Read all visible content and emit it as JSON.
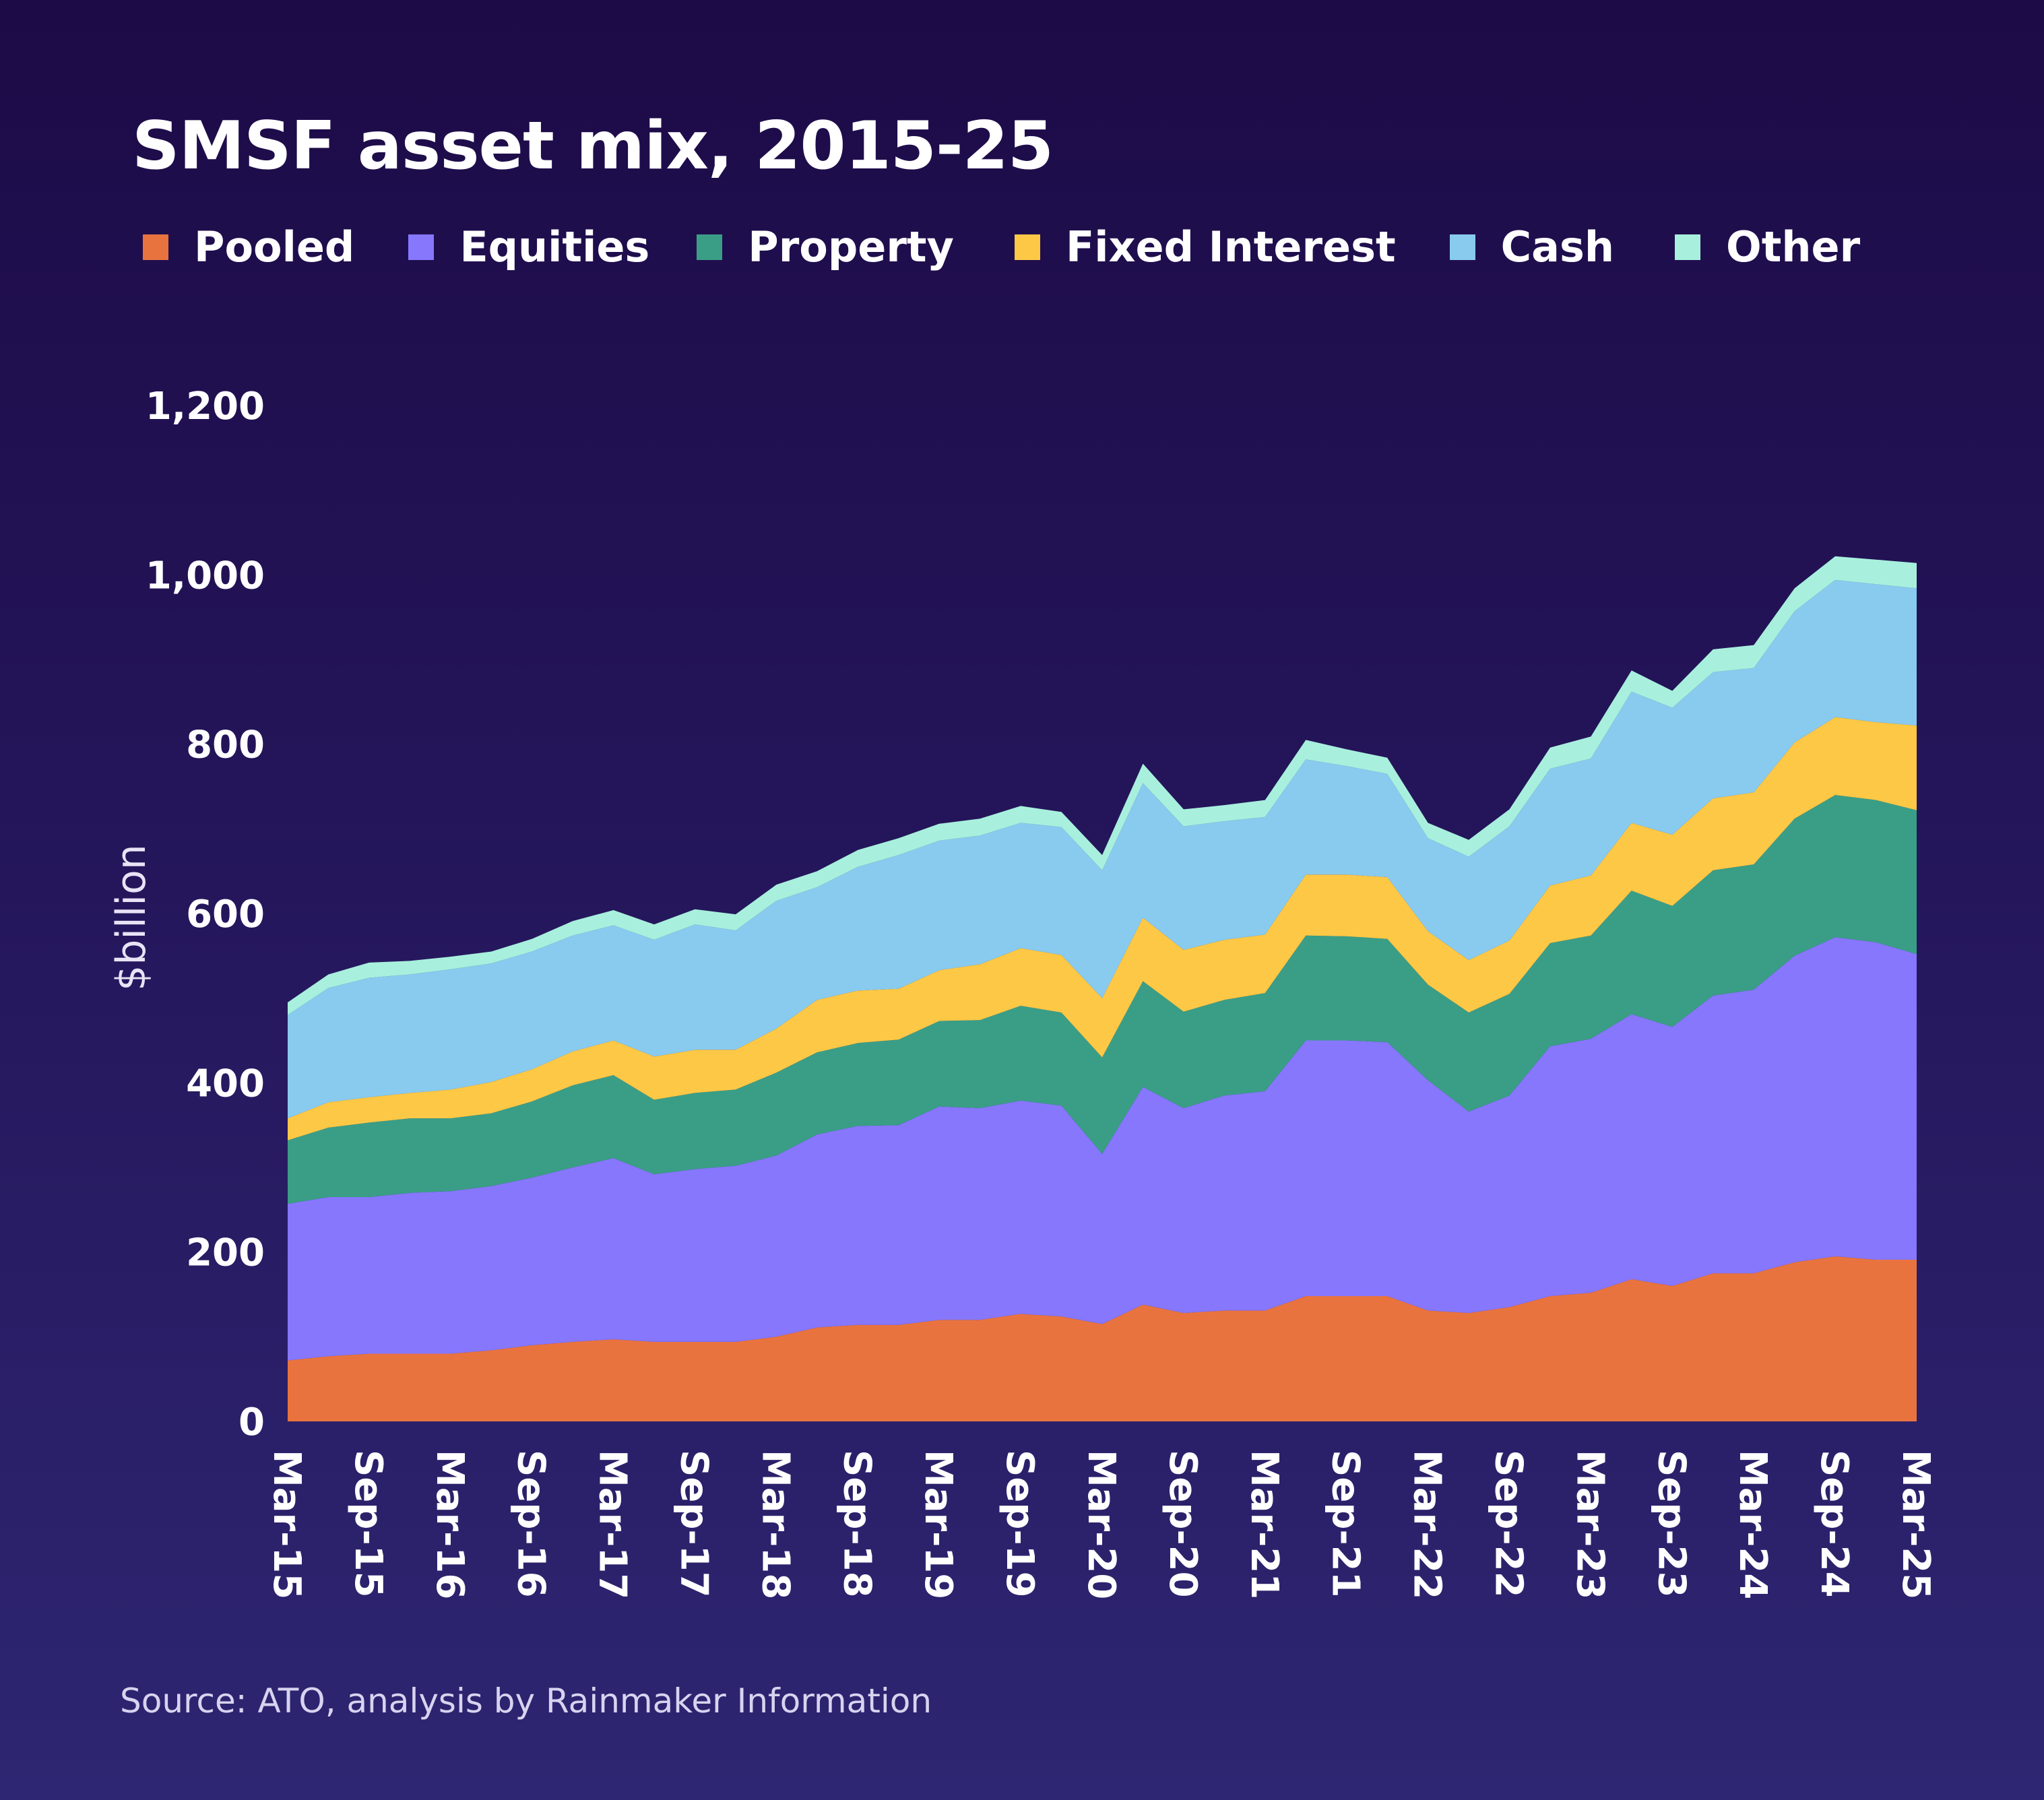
{
  "title": "SMSF asset mix, 2015-25",
  "source": "Source: ATO, analysis by Rainmaker Information",
  "legend": [
    {
      "label": "Pooled",
      "color": "#e9733f"
    },
    {
      "label": "Equities",
      "color": "#8677fc"
    },
    {
      "label": "Property",
      "color": "#3a9e86"
    },
    {
      "label": "Fixed Interest",
      "color": "#fdc846"
    },
    {
      "label": "Cash",
      "color": "#88cbef"
    },
    {
      "label": "Other",
      "color": "#a8f0dd"
    }
  ],
  "chart_data": {
    "type": "area",
    "stacked": true,
    "title": "SMSF asset mix, 2015-25",
    "ylabel": "$billion",
    "xlabel": "",
    "ylim": [
      0,
      1200
    ],
    "yticks": [
      0,
      200,
      400,
      600,
      800,
      1000,
      1200
    ],
    "ytick_labels": [
      "0",
      "200",
      "400",
      "600",
      "800",
      "1,000",
      "1,200"
    ],
    "xtick_labels": [
      "Mar-15",
      "Sep-15",
      "Mar-16",
      "Sep-16",
      "Mar-17",
      "Sep-17",
      "Mar-18",
      "Sep-18",
      "Mar-19",
      "Sep-19",
      "Mar-20",
      "Sep-20",
      "Mar-21",
      "Sep-21",
      "Mar-22",
      "Sep-22",
      "Mar-23",
      "Sep-23",
      "Mar-24",
      "Sep-24",
      "Mar-25"
    ],
    "x": [
      "Mar-15",
      "Jun-15",
      "Sep-15",
      "Dec-15",
      "Mar-16",
      "Jun-16",
      "Sep-16",
      "Dec-16",
      "Mar-17",
      "Jun-17",
      "Sep-17",
      "Dec-17",
      "Mar-18",
      "Jun-18",
      "Sep-18",
      "Dec-18",
      "Mar-19",
      "Jun-19",
      "Sep-19",
      "Dec-19",
      "Mar-20",
      "Jun-20",
      "Sep-20",
      "Dec-20",
      "Mar-21",
      "Jun-21",
      "Sep-21",
      "Dec-21",
      "Mar-22",
      "Jun-22",
      "Sep-22",
      "Dec-22",
      "Mar-23",
      "Jun-23",
      "Sep-23",
      "Dec-23",
      "Mar-24",
      "Jun-24",
      "Sep-24",
      "Dec-24",
      "Mar-25"
    ],
    "series": [
      {
        "name": "Pooled",
        "values": [
          72,
          77,
          80,
          80,
          80,
          84,
          90,
          94,
          97,
          94,
          94,
          94,
          100,
          111,
          114,
          114,
          120,
          120,
          127,
          124,
          115,
          138,
          128,
          131,
          131,
          148,
          148,
          148,
          131,
          128,
          135,
          148,
          152,
          168,
          160,
          175,
          175,
          188,
          195,
          191,
          191
        ]
      },
      {
        "name": "Equities",
        "values": [
          185,
          188,
          185,
          190,
          192,
          194,
          198,
          206,
          214,
          198,
          204,
          208,
          214,
          228,
          235,
          236,
          252,
          250,
          252,
          249,
          201,
          257,
          242,
          254,
          259,
          302,
          302,
          300,
          272,
          238,
          250,
          295,
          300,
          313,
          306,
          328,
          335,
          362,
          377,
          375,
          361
        ]
      },
      {
        "name": "Property",
        "values": [
          75,
          82,
          88,
          88,
          86,
          86,
          90,
          97,
          98,
          88,
          90,
          90,
          98,
          97,
          98,
          101,
          101,
          104,
          112,
          110,
          114,
          125,
          114,
          113,
          116,
          124,
          123,
          122,
          113,
          117,
          120,
          122,
          122,
          146,
          143,
          148,
          148,
          162,
          168,
          168,
          170
        ]
      },
      {
        "name": "Fixed Interest",
        "values": [
          26,
          30,
          30,
          30,
          34,
          37,
          38,
          40,
          41,
          51,
          51,
          47,
          52,
          62,
          62,
          60,
          60,
          66,
          68,
          68,
          70,
          75,
          73,
          71,
          69,
          72,
          73,
          73,
          63,
          62,
          63,
          68,
          71,
          80,
          84,
          85,
          85,
          90,
          92,
          92,
          100
        ]
      },
      {
        "name": "Cash",
        "values": [
          122,
          135,
          141,
          140,
          142,
          140,
          139,
          137,
          136,
          138,
          148,
          141,
          151,
          133,
          146,
          158,
          153,
          152,
          148,
          151,
          151,
          159,
          146,
          140,
          139,
          136,
          128,
          122,
          110,
          122,
          135,
          138,
          138,
          155,
          150,
          149,
          147,
          155,
          162,
          163,
          162
        ]
      },
      {
        "name": "Other",
        "values": [
          15,
          16,
          18,
          16,
          15,
          14,
          15,
          17,
          18,
          18,
          18,
          19,
          19,
          19,
          20,
          20,
          20,
          20,
          20,
          18,
          18,
          23,
          20,
          19,
          20,
          23,
          20,
          19,
          18,
          20,
          20,
          25,
          26,
          25,
          20,
          27,
          27,
          27,
          28,
          29,
          30
        ]
      }
    ]
  }
}
